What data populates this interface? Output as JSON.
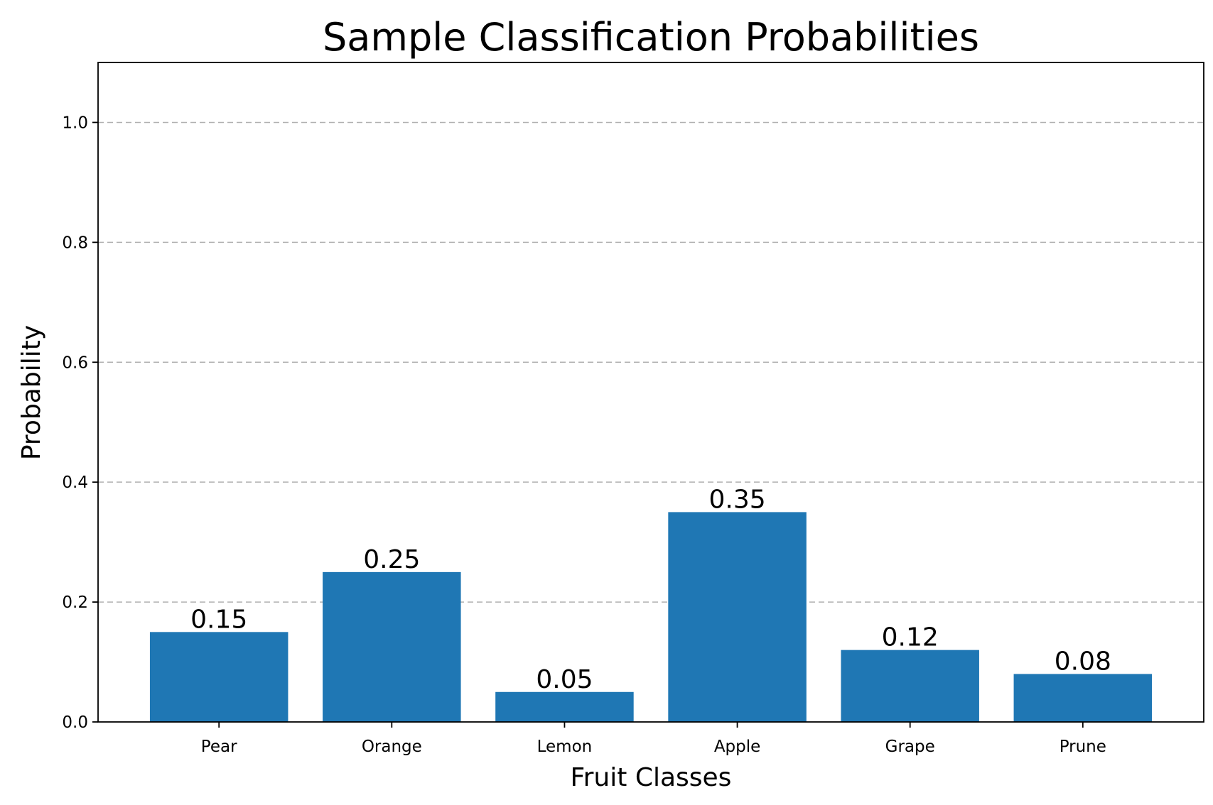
{
  "chart_data": {
    "type": "bar",
    "title": "Sample Classification Probabilities",
    "xlabel": "Fruit Classes",
    "ylabel": "Probability",
    "categories": [
      "Pear",
      "Orange",
      "Lemon",
      "Apple",
      "Grape",
      "Prune"
    ],
    "values": [
      0.15,
      0.25,
      0.05,
      0.35,
      0.12,
      0.08
    ],
    "data_labels": [
      "0.15",
      "0.25",
      "0.05",
      "0.35",
      "0.12",
      "0.08"
    ],
    "ylim": [
      0,
      1.1
    ],
    "yticks": [
      0.0,
      0.2,
      0.4,
      0.6,
      0.8,
      1.0
    ],
    "ytick_labels": [
      "0.0",
      "0.2",
      "0.4",
      "0.6",
      "0.8",
      "1.0"
    ],
    "grid": {
      "axis": "y",
      "style": "dashed"
    },
    "colors": {
      "bar": "#1f77b4",
      "grid": "#b0b0b0",
      "axes": "#000000"
    }
  }
}
